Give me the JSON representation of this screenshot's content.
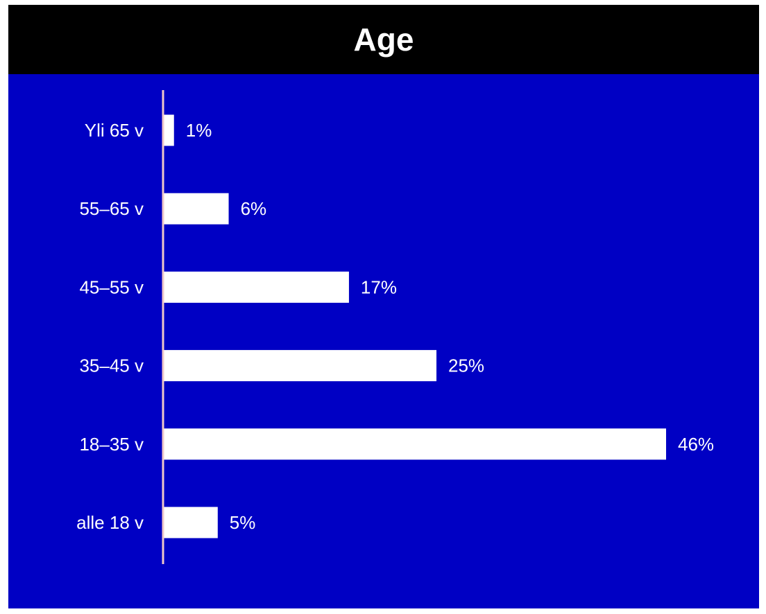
{
  "chart_data": {
    "type": "bar",
    "orientation": "horizontal",
    "title": "Age",
    "xlabel": "",
    "ylabel": "",
    "categories": [
      "Yli 65 v",
      "55–65 v",
      "45–55 v",
      "35–45 v",
      "18–35 v",
      "alle 18 v"
    ],
    "values": [
      1,
      6,
      17,
      25,
      46,
      5
    ],
    "value_labels": [
      "1%",
      "6%",
      "17%",
      "25%",
      "46%",
      "5%"
    ],
    "xlim": [
      0,
      46
    ],
    "grid": false,
    "legend": "none",
    "colors": {
      "background": "#0000c4",
      "title_band": "#000000",
      "bar": "#ffffff",
      "axis": "#f0c8c8",
      "text": "#ffffff"
    }
  }
}
